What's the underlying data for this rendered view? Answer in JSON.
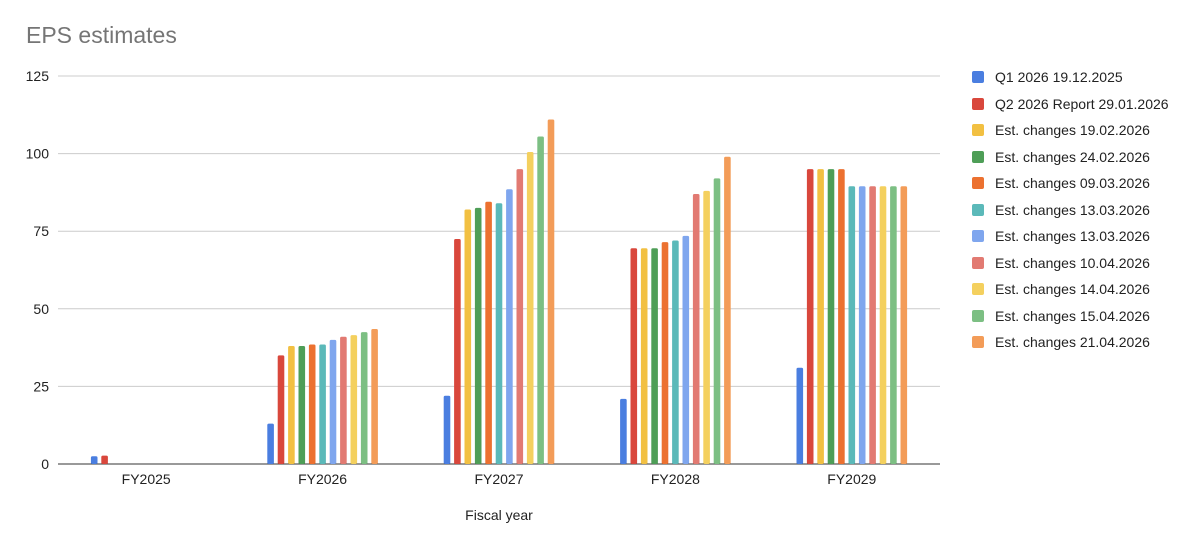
{
  "chart_data": {
    "type": "bar",
    "title": "EPS estimates",
    "xlabel": "Fiscal year",
    "ylabel": "",
    "ylim": [
      0,
      125
    ],
    "yticks": [
      0,
      25,
      50,
      75,
      100,
      125
    ],
    "grid": true,
    "legend_position": "right",
    "categories": [
      "FY2025",
      "FY2026",
      "FY2027",
      "FY2028",
      "FY2029"
    ],
    "series": [
      {
        "name": "Q1 2026 19.12.2025",
        "color": "#4a7ee0",
        "values": [
          2.5,
          13,
          22,
          21,
          31
        ]
      },
      {
        "name": "Q2 2026 Report 29.01.2026",
        "color": "#d9473c",
        "values": [
          2.7,
          35,
          72.5,
          69.5,
          95
        ]
      },
      {
        "name": "Est. changes 19.02.2026",
        "color": "#f2c042",
        "values": [
          null,
          38,
          82,
          69.5,
          95
        ]
      },
      {
        "name": "Est. changes 24.02.2026",
        "color": "#4e9e57",
        "values": [
          null,
          38,
          82.5,
          69.5,
          95
        ]
      },
      {
        "name": "Est. changes 09.03.2026",
        "color": "#ec7130",
        "values": [
          null,
          38.5,
          84.5,
          71.5,
          95
        ]
      },
      {
        "name": "Est. changes 13.03.2026",
        "color": "#5bb9b9",
        "values": [
          null,
          38.5,
          84,
          72,
          89.5
        ]
      },
      {
        "name": "Est. changes 13.03.2026",
        "color": "#7fa6ee",
        "values": [
          null,
          40,
          88.5,
          73.5,
          89.5
        ]
      },
      {
        "name": "Est. changes 10.04.2026",
        "color": "#e27a72",
        "values": [
          null,
          41,
          95,
          87,
          89.5
        ]
      },
      {
        "name": "Est. changes 14.04.2026",
        "color": "#f4d05e",
        "values": [
          null,
          41.5,
          100.5,
          88,
          89.5
        ]
      },
      {
        "name": "Est. changes 15.04.2026",
        "color": "#7cbf83",
        "values": [
          null,
          42.5,
          105.5,
          92,
          89.5
        ]
      },
      {
        "name": "Est. changes 21.04.2026",
        "color": "#f39c58",
        "values": [
          null,
          43.5,
          111,
          99,
          89.5
        ]
      }
    ]
  }
}
